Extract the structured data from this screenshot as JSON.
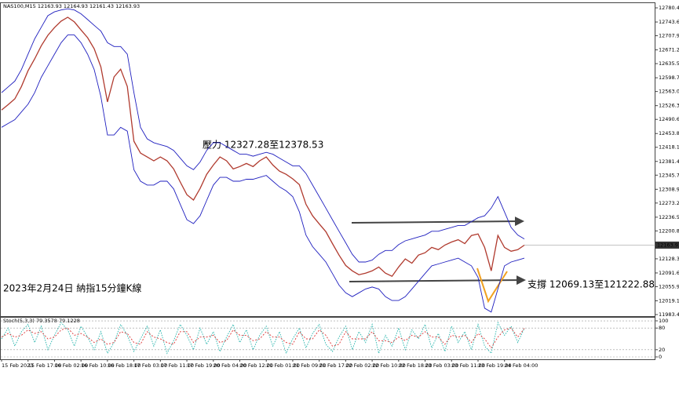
{
  "chart_data": [
    {
      "type": "line",
      "header": "NAS100,M15 12163.93 12164.93 12161.43 12163.93",
      "title": "2023年2月24日 納指15分鐘K線",
      "annotations": [
        "壓力 12327.28至12378.53",
        "支撐 12069.13至121222.88"
      ],
      "grid": false,
      "ylim": [
        11979.4,
        12794.7
      ],
      "yticks": [
        {
          "value": 12780.4,
          "label": "12780.40"
        },
        12743.65,
        12707.95,
        {
          "value": 12671.2,
          "label": "12671.20"
        },
        {
          "value": 12635.5,
          "label": "12635.50"
        },
        12598.75,
        12563.05,
        {
          "value": 12526.3,
          "label": "12526.30"
        },
        {
          "value": 12490.6,
          "label": "12490.60"
        },
        12453.85,
        12418.15,
        {
          "value": 12381.4,
          "label": "12381.40"
        },
        {
          "value": 12345.7,
          "label": "12345.70"
        },
        12308.95,
        12273.25,
        {
          "value": 12236.5,
          "label": "12236.50"
        },
        {
          "value": 12200.8,
          "label": "12200.80"
        },
        12128.35,
        {
          "value": 12091.6,
          "label": "12091.60"
        },
        {
          "value": 12055.9,
          "label": "12055.90"
        },
        12019.15,
        11983.45
      ],
      "categories": [
        "15 Feb 2023",
        null,
        null,
        null,
        "15 Feb 17:00",
        null,
        null,
        null,
        "16 Feb 02:00",
        null,
        null,
        null,
        "16 Feb 10:00",
        null,
        null,
        null,
        "16 Feb 18:00",
        null,
        null,
        null,
        "17 Feb 03:00",
        null,
        null,
        null,
        "17 Feb 11:00",
        null,
        null,
        null,
        "17 Feb 19:00",
        null,
        null,
        null,
        "20 Feb 04:00",
        null,
        null,
        null,
        "20 Feb 12:00",
        null,
        null,
        null,
        "21 Feb 01:00",
        null,
        null,
        null,
        "21 Feb 09:00",
        null,
        null,
        null,
        "21 Feb 17:00",
        null,
        null,
        null,
        "22 Feb 02:00",
        null,
        null,
        null,
        "22 Feb 10:00",
        null,
        null,
        null,
        "22 Feb 18:00",
        null,
        null,
        null,
        "23 Feb 03:00",
        null,
        null,
        null,
        "23 Feb 11:00",
        null,
        null,
        null,
        "23 Feb 19:00",
        null,
        null,
        null,
        "24 Feb 04:00",
        null,
        null,
        null
      ],
      "series": [
        {
          "color": "#1f1fbf",
          "values": [
            12560,
            12575,
            12590,
            12620,
            12660,
            12700,
            12730,
            12760,
            12770,
            12775,
            12778,
            12775,
            12765,
            12750,
            12735,
            12720,
            12690,
            12680,
            12680,
            12660,
            12560,
            12470,
            12440,
            12430,
            12425,
            12420,
            12410,
            12390,
            12370,
            12360,
            12380,
            12410,
            12430,
            12430,
            12420,
            12410,
            12400,
            12400,
            12395,
            12400,
            12405,
            12400,
            12390,
            12380,
            12370,
            12370,
            12350,
            12320,
            12290,
            12260,
            12230,
            12200,
            12170,
            12140,
            12120,
            12120,
            12125,
            12140,
            12150,
            12150,
            12165,
            12175,
            12180,
            12185,
            12190,
            12200,
            12200,
            12205,
            12210,
            12215,
            12215,
            12225,
            12235,
            12240,
            12260,
            12290,
            12250,
            12210,
            12190,
            12180
          ]
        },
        {
          "color": "#1f1fbf",
          "values": [
            12470,
            12480,
            12490,
            12510,
            12530,
            12560,
            12600,
            12630,
            12660,
            12690,
            12710,
            12710,
            12690,
            12660,
            12620,
            12550,
            12450,
            12450,
            12470,
            12460,
            12360,
            12330,
            12320,
            12320,
            12330,
            12330,
            12310,
            12270,
            12230,
            12220,
            12240,
            12280,
            12320,
            12340,
            12340,
            12330,
            12330,
            12335,
            12335,
            12340,
            12345,
            12330,
            12315,
            12305,
            12290,
            12250,
            12190,
            12160,
            12140,
            12120,
            12090,
            12060,
            12040,
            12030,
            12040,
            12050,
            12055,
            12050,
            12030,
            12020,
            12020,
            12030,
            12050,
            12070,
            12090,
            12110,
            12115,
            12120,
            12125,
            12130,
            12120,
            12110,
            12080,
            12000,
            11990,
            12050,
            12110,
            12120,
            12125,
            12130
          ]
        },
        {
          "color": "#b03a2e",
          "values": [
            12515,
            12529,
            12544,
            12576,
            12617,
            12648,
            12682,
            12709,
            12729,
            12746,
            12756,
            12744,
            12723,
            12703,
            12674,
            12627,
            12536,
            12601,
            12621,
            12576,
            12434,
            12403,
            12393,
            12383,
            12393,
            12383,
            12362,
            12328,
            12295,
            12281,
            12311,
            12348,
            12372,
            12393,
            12383,
            12362,
            12368,
            12376,
            12368,
            12383,
            12393,
            12372,
            12356,
            12348,
            12336,
            12321,
            12270,
            12240,
            12219,
            12199,
            12168,
            12138,
            12111,
            12097,
            12087,
            12091,
            12097,
            12107,
            12091,
            12083,
            12107,
            12128,
            12117,
            12138,
            12144,
            12158,
            12152,
            12164,
            12172,
            12178,
            12168,
            12189,
            12193,
            12158,
            12097,
            12189,
            12158,
            12148,
            12152,
            12163.93
          ]
        }
      ]
    },
    {
      "type": "line",
      "title": "Stoch(5,3,3) 79.3578 79.1228",
      "grid": true,
      "ylim": [
        -6.5,
        110.9
      ],
      "yticks": [
        100,
        80,
        20,
        0
      ],
      "series": [
        {
          "color": "#20b2aa",
          "values": [
            50,
            80,
            30,
            70,
            90,
            40,
            85,
            20,
            60,
            95,
            75,
            30,
            85,
            55,
            20,
            70,
            10,
            40,
            90,
            60,
            15,
            50,
            85,
            30,
            75,
            10,
            45,
            90,
            60,
            20,
            80,
            35,
            70,
            15,
            55,
            90,
            40,
            75,
            20,
            60,
            85,
            30,
            70,
            10,
            50,
            80,
            25,
            65,
            90,
            35,
            15,
            55,
            85,
            20,
            70,
            40,
            90,
            10,
            60,
            30,
            80,
            20,
            75,
            50,
            90,
            25,
            65,
            15,
            85,
            40,
            70,
            20,
            90,
            30,
            10,
            95,
            60,
            85,
            40,
            79.3578
          ]
        },
        {
          "color": "#d33",
          "values": [
            55,
            65,
            55,
            60,
            75,
            65,
            70,
            50,
            55,
            75,
            80,
            60,
            65,
            55,
            40,
            50,
            35,
            40,
            70,
            65,
            40,
            35,
            70,
            55,
            50,
            40,
            35,
            70,
            70,
            40,
            55,
            55,
            60,
            40,
            45,
            75,
            60,
            60,
            45,
            50,
            70,
            55,
            55,
            40,
            35,
            70,
            50,
            50,
            75,
            60,
            30,
            35,
            70,
            50,
            50,
            50,
            70,
            45,
            45,
            40,
            55,
            45,
            60,
            55,
            70,
            55,
            55,
            35,
            60,
            55,
            60,
            40,
            65,
            50,
            25,
            55,
            75,
            80,
            55,
            79.1228
          ]
        }
      ]
    }
  ]
}
